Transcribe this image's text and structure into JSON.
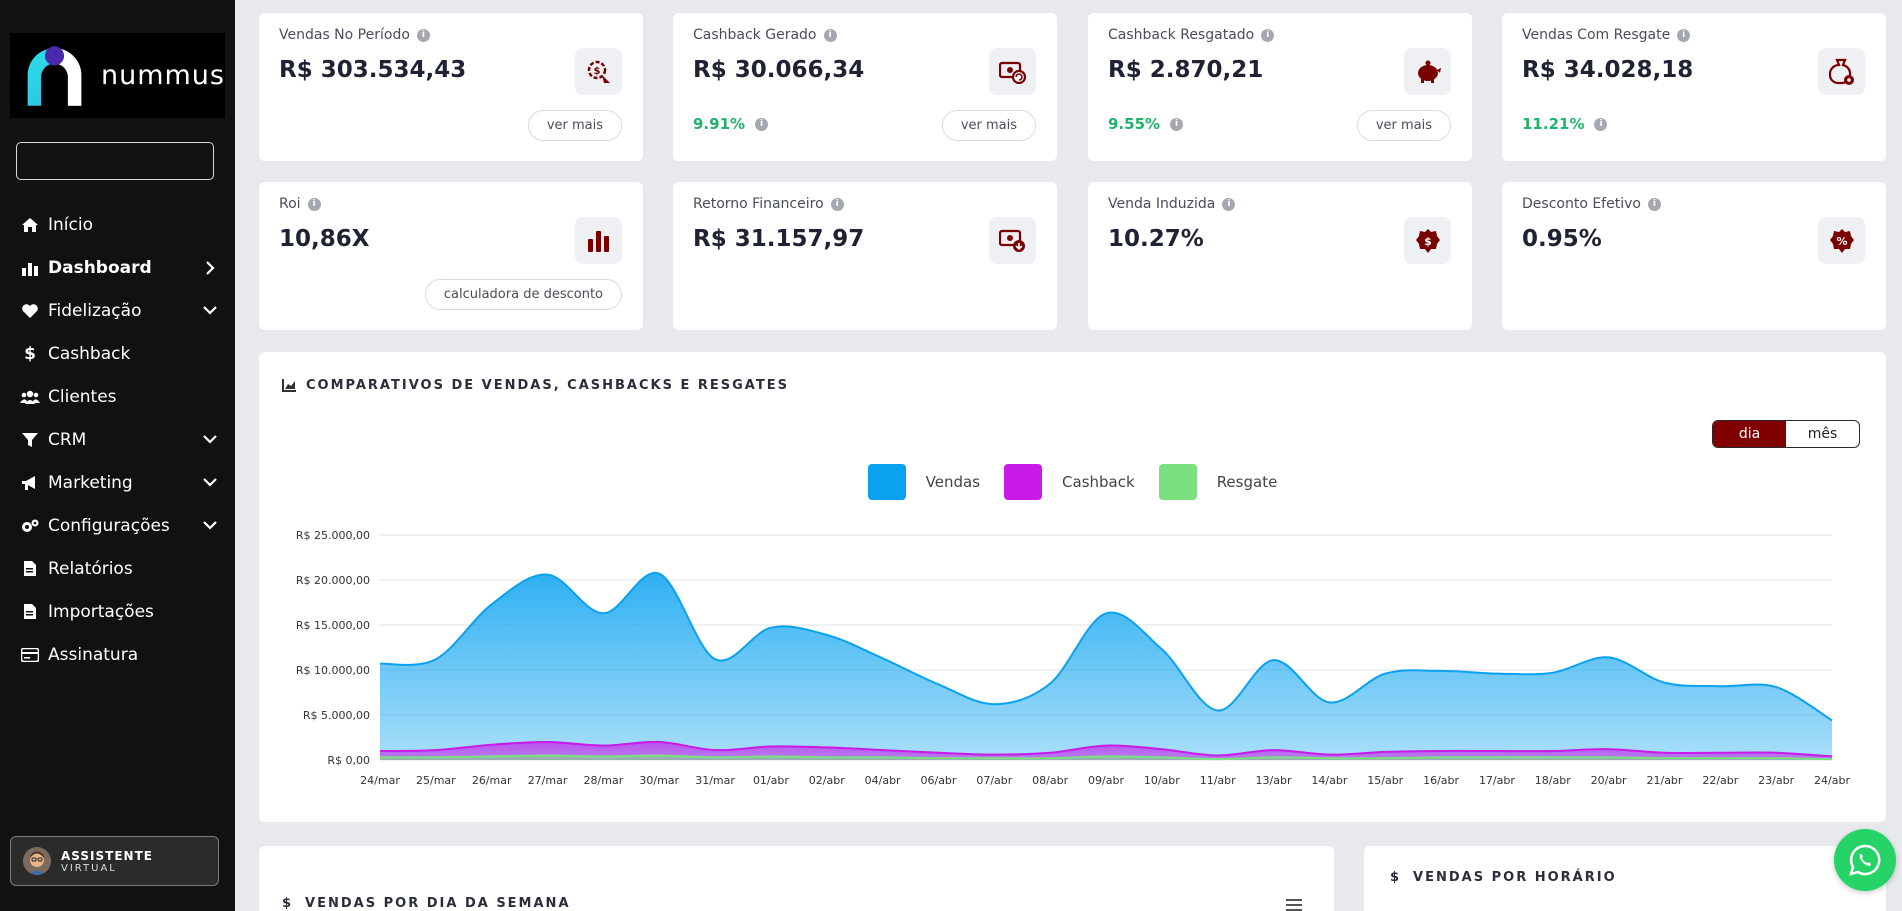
{
  "brand": {
    "name": "nummus"
  },
  "search": {
    "value": ""
  },
  "nav": [
    {
      "label": "Início",
      "icon": "home-icon",
      "active": false,
      "chevron": ""
    },
    {
      "label": "Dashboard",
      "icon": "bar-chart-icon",
      "active": true,
      "chevron": "right"
    },
    {
      "label": "Fidelização",
      "icon": "heart-icon",
      "active": false,
      "chevron": "down"
    },
    {
      "label": "Cashback",
      "icon": "dollar-icon",
      "active": false,
      "chevron": ""
    },
    {
      "label": "Clientes",
      "icon": "users-icon",
      "active": false,
      "chevron": ""
    },
    {
      "label": "CRM",
      "icon": "funnel-icon",
      "active": false,
      "chevron": "down"
    },
    {
      "label": "Marketing",
      "icon": "megaphone-icon",
      "active": false,
      "chevron": "down"
    },
    {
      "label": "Configurações",
      "icon": "gears-icon",
      "active": false,
      "chevron": "down"
    },
    {
      "label": "Relatórios",
      "icon": "document-icon",
      "active": false,
      "chevron": ""
    },
    {
      "label": "Importações",
      "icon": "document-icon",
      "active": false,
      "chevron": ""
    },
    {
      "label": "Assinatura",
      "icon": "credit-card-icon",
      "active": false,
      "chevron": ""
    }
  ],
  "assistant": {
    "line1": "ASSISTENTE",
    "line2": "VIRTUAL"
  },
  "kpis": [
    {
      "title": "Vendas No Período",
      "value": "R$ 303.534,43",
      "pct": "",
      "button": "ver mais",
      "icon": "sales-gear-icon"
    },
    {
      "title": "Cashback Gerado",
      "value": "R$ 30.066,34",
      "pct": "9.91%",
      "button": "ver mais",
      "icon": "money-refresh-icon"
    },
    {
      "title": "Cashback Resgatado",
      "value": "R$ 2.870,21",
      "pct": "9.55%",
      "button": "ver mais",
      "icon": "piggy-bank-icon"
    },
    {
      "title": "Vendas Com Resgate",
      "value": "R$ 34.028,18",
      "pct": "11.21%",
      "button": "",
      "icon": "money-bag-icon"
    },
    {
      "title": "Roi",
      "value": "10,86X",
      "pct": "",
      "button": "calculadora de desconto",
      "icon": "bar-chart-icon"
    },
    {
      "title": "Retorno Financeiro",
      "value": "R$ 31.157,97",
      "pct": "",
      "button": "",
      "icon": "money-download-icon"
    },
    {
      "title": "Venda Induzida",
      "value": "10.27%",
      "pct": "",
      "button": "",
      "icon": "dollar-badge-icon"
    },
    {
      "title": "Desconto Efetivo",
      "value": "0.95%",
      "pct": "",
      "button": "",
      "icon": "percent-badge-icon"
    }
  ],
  "chart_section": {
    "title": "COMPARATIVOS DE VENDAS, CASHBACKS E RESGATES",
    "toggle": [
      "dia",
      "mês"
    ],
    "toggle_active": 0
  },
  "chart_data": {
    "type": "area",
    "x": [
      "24/mar",
      "25/mar",
      "26/mar",
      "27/mar",
      "28/mar",
      "30/mar",
      "31/mar",
      "01/abr",
      "02/abr",
      "04/abr",
      "06/abr",
      "07/abr",
      "08/abr",
      "09/abr",
      "10/abr",
      "11/abr",
      "13/abr",
      "14/abr",
      "15/abr",
      "16/abr",
      "17/abr",
      "18/abr",
      "20/abr",
      "21/abr",
      "22/abr",
      "23/abr",
      "24/abr"
    ],
    "y_ticks": [
      "R$ 0,00",
      "R$ 5.000,00",
      "R$ 10.000,00",
      "R$ 15.000,00",
      "R$ 20.000,00",
      "R$ 25.000,00"
    ],
    "ylim": [
      0,
      25000
    ],
    "series": [
      {
        "name": "Vendas",
        "color": "#0aa2f0",
        "values": [
          10700,
          11200,
          17300,
          20600,
          16300,
          20700,
          11200,
          14700,
          13900,
          11300,
          8400,
          6200,
          8500,
          16300,
          12300,
          5500,
          11100,
          6400,
          9600,
          9900,
          9600,
          9700,
          11400,
          8600,
          8200,
          8100,
          4400
        ]
      },
      {
        "name": "Cashback",
        "color": "#c81ae8",
        "values": [
          1000,
          1100,
          1700,
          2000,
          1600,
          2000,
          1100,
          1500,
          1400,
          1100,
          800,
          600,
          800,
          1600,
          1200,
          500,
          1100,
          600,
          900,
          1000,
          1000,
          1000,
          1200,
          800,
          800,
          800,
          400
        ]
      },
      {
        "name": "Resgate",
        "color": "#7be07f",
        "values": [
          300,
          300,
          400,
          500,
          400,
          500,
          300,
          400,
          300,
          300,
          200,
          200,
          200,
          400,
          300,
          100,
          300,
          200,
          200,
          300,
          300,
          300,
          300,
          200,
          200,
          200,
          100
        ]
      }
    ]
  },
  "bottom": {
    "left_title": "VENDAS POR DIA DA SEMANA",
    "right_title": "VENDAS POR HORÁRIO"
  }
}
